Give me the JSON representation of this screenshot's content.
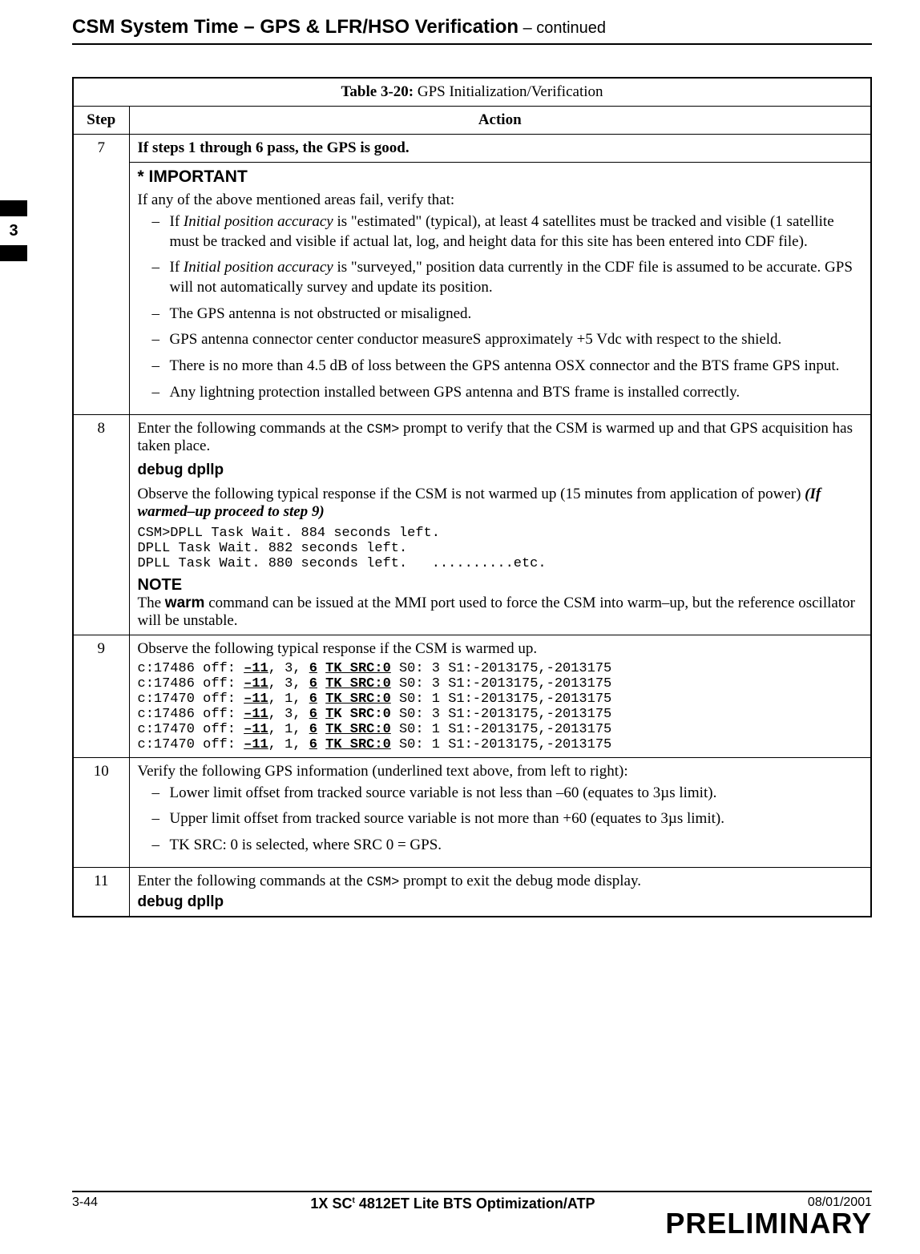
{
  "header": {
    "title": "CSM System Time – GPS & LFR/HSO Verification",
    "continued": " – continued"
  },
  "side_tab": "3",
  "table": {
    "caption_bold": "Table 3-20:",
    "caption_rest": " GPS Initialization/Verification",
    "head_step": "Step",
    "head_action": "Action",
    "row7": {
      "step": "7",
      "line1": "If steps 1 through 6 pass, the GPS is good.",
      "important": "* IMPORTANT",
      "intro": "If any of the above mentioned areas fail, verify that:",
      "b1a": "If ",
      "b1b": "Initial position accuracy",
      "b1c": " is \"estimated\"  (typical), at least 4 satellites must be tracked and visible (1 satellite must be tracked and visible if actual lat, log, and height data for this site has been entered into CDF file).",
      "b2a": "If ",
      "b2b": "Initial position accuracy",
      "b2c": " is \"surveyed,\"  position data currently in the CDF file is assumed to be accurate. GPS will not automatically survey and update its position.",
      "b3": "The GPS antenna is not obstructed or misaligned.",
      "b4": "GPS antenna connector center conductor measureS approximately +5 Vdc with respect to the shield.",
      "b5": "There is no more than 4.5 dB of loss between the GPS antenna OSX connector and the BTS frame GPS input.",
      "b6": "Any lightning protection installed between GPS antenna and BTS frame is installed correctly."
    },
    "row8": {
      "step": "8",
      "p1a": "Enter the following commands at the ",
      "p1b": "CSM>",
      "p1c": " prompt to verify that the CSM is warmed up and that GPS acquisition has taken place.",
      "cmd": "debug dpllp",
      "p2a": "Observe the following typical response if the CSM is not warmed up (15 minutes from application of power) ",
      "p2b": "(If warmed–up proceed to step 9)",
      "mono": "CSM>DPLL Task Wait. 884 seconds left.\nDPLL Task Wait. 882 seconds left.\nDPLL Task Wait. 880 seconds left.   ..........etc.",
      "note": "NOTE",
      "p3a": "The ",
      "p3b": "warm",
      "p3c": " command can be issued at the MMI port used to force the CSM into warm–up, but the reference oscillator will be unstable."
    },
    "row9": {
      "step": "9",
      "p1": "Observe the following typical response if the CSM is warmed up.",
      "lines": [
        {
          "a": "c:17486 off: ",
          "b": "–11",
          "c": ", 3, ",
          "d": "6",
          "sp": " ",
          "e": "TK SRC:0",
          "f": " S0: 3 S1:-2013175,-2013175"
        },
        {
          "a": "c:17486 off: ",
          "b": "–11",
          "c": ", 3, ",
          "d": "6",
          "sp": " ",
          "e": "TK SRC:0",
          "f": " S0: 3 S1:-2013175,-2013175"
        },
        {
          "a": "c:17470 off: ",
          "b": "–11",
          "c": ", 1, ",
          "d": "6",
          "sp": " ",
          "e": "TK SRC:0",
          "f": " S0: 1 S1:-2013175,-2013175"
        },
        {
          "a": "c:17486 off: ",
          "b": "–11",
          "c": ", 3, ",
          "d": "6",
          "sp": " ",
          "e": "TK SRC:0",
          "f": " S0: 3 S1:-2013175,-2013175",
          "partial": true,
          "e1": "T",
          "e2": "K SRC:0"
        },
        {
          "a": "c:17470 off: ",
          "b": "–11",
          "c": ", 1, ",
          "d": "6",
          "sp": " ",
          "e": "TK SRC:0",
          "f": " S0: 1 S1:-2013175,-2013175"
        },
        {
          "a": "c:17470 off: ",
          "b": "–11",
          "c": ", 1, ",
          "d": "6",
          "sp": " ",
          "e": "TK SRC:0",
          "f": " S0: 1 S1:-2013175,-2013175"
        }
      ]
    },
    "row10": {
      "step": "10",
      "p1": "Verify the following GPS information (underlined text above, from left to right):",
      "b1": "Lower limit offset from tracked source variable is not less than –60 (equates to 3µs limit).",
      "b2": "Upper limit offset from tracked source variable is not more than +60 (equates to 3µs limit).",
      "b3": "TK SRC: 0 is selected, where SRC 0 = GPS."
    },
    "row11": {
      "step": "11",
      "p1a": "Enter the following commands at the ",
      "p1b": "CSM>",
      "p1c": " prompt to exit the debug mode display.",
      "cmd": "debug  dpllp"
    }
  },
  "footer": {
    "left": "3-44",
    "center_a": "1X SC",
    "center_tm": "t",
    "center_b": "4812ET Lite BTS Optimization/ATP",
    "right": "08/01/2001",
    "prelim": "PRELIMINARY"
  }
}
